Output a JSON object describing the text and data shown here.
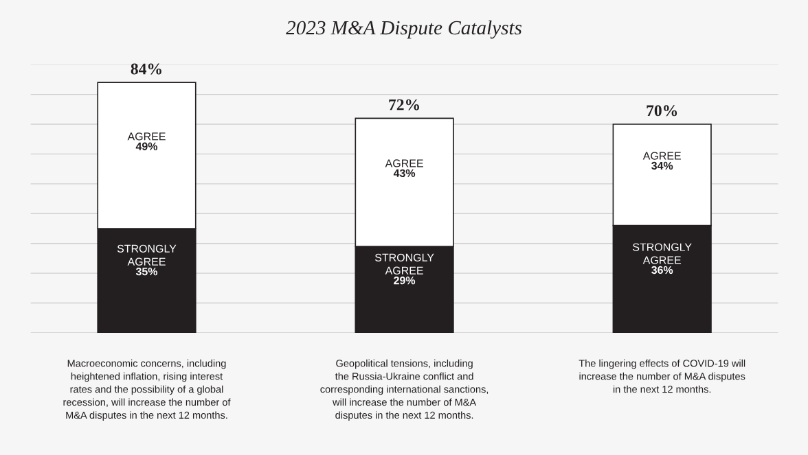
{
  "chart_data": {
    "type": "bar",
    "title": "2023 M&A Dispute Catalysts",
    "stacked": true,
    "categories": [
      "Macroeconomic concerns, including\nheightened inflation, rising interest\nrates and the possibility of a global\nrecession, will increase the number of\nM&A disputes in the next 12 months.",
      "Geopolitical tensions, including\nthe Russia-Ukraine conflict and\ncorresponding international sanctions,\nwill increase the number of M&A\ndisputes in the next 12 months.",
      "The lingering effects of COVID-19 will\nincrease the number of M&A disputes\nin the next 12 months."
    ],
    "series": [
      {
        "name": "STRONGLY AGREE",
        "color": "#231f20",
        "values": [
          35,
          29,
          36
        ],
        "value_labels": [
          "35%",
          "29%",
          "36%"
        ]
      },
      {
        "name": "AGREE",
        "color": "#ffffff",
        "values": [
          49,
          43,
          34
        ],
        "value_labels": [
          "49%",
          "43%",
          "34%"
        ]
      }
    ],
    "totals": [
      "84%",
      "72%",
      "70%"
    ],
    "ylim": [
      0,
      90
    ],
    "yticks": [
      {
        "value": 0,
        "label": null
      },
      {
        "value": 10,
        "label": null
      },
      {
        "value": 20,
        "label": null
      },
      {
        "value": 30,
        "label": null
      },
      {
        "value": 40,
        "label": null
      },
      {
        "value": 50,
        "label": null
      },
      {
        "value": 60,
        "label": null
      },
      {
        "value": 70,
        "label": null
      },
      {
        "value": 80,
        "label": null
      },
      {
        "value": 90,
        "label": null
      }
    ],
    "grid": "y",
    "legend": false
  }
}
